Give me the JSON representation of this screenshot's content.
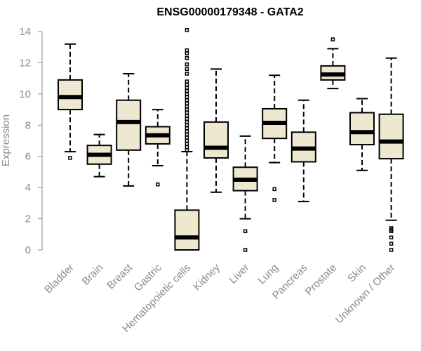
{
  "chart_data": {
    "type": "box",
    "title": "ENSG00000179348 - GATA2",
    "ylabel": "Expression",
    "xlabel": "",
    "ylim": [
      0,
      14
    ],
    "yticks": [
      0,
      2,
      4,
      6,
      8,
      10,
      12,
      14
    ],
    "colors": {
      "box_fill": "#efe8d1",
      "stroke": "#000000",
      "axis": "#8a8a8a",
      "label": "#8a8a8a"
    },
    "categories": [
      "Bladder",
      "Brain",
      "Breast",
      "Gastric",
      "Hematopoietic cells",
      "Kidney",
      "Liver",
      "Lung",
      "Pancreas",
      "Prostate",
      "Skin",
      "Unknown / Other"
    ],
    "boxes": [
      {
        "name": "Bladder",
        "whisker_low": 6.3,
        "q1": 9.0,
        "median": 9.8,
        "q3": 10.9,
        "whisker_high": 13.2,
        "outliers": [
          5.9
        ]
      },
      {
        "name": "Brain",
        "whisker_low": 4.7,
        "q1": 5.5,
        "median": 6.1,
        "q3": 6.7,
        "whisker_high": 7.4,
        "outliers": []
      },
      {
        "name": "Breast",
        "whisker_low": 4.1,
        "q1": 6.4,
        "median": 8.2,
        "q3": 9.6,
        "whisker_high": 11.3,
        "outliers": []
      },
      {
        "name": "Gastric",
        "whisker_low": 5.4,
        "q1": 6.8,
        "median": 7.35,
        "q3": 7.9,
        "whisker_high": 9.0,
        "outliers": [
          4.2
        ]
      },
      {
        "name": "Hematopoietic cells",
        "whisker_low": 0.0,
        "q1": 0.0,
        "median": 0.8,
        "q3": 2.55,
        "whisker_high": 6.3,
        "outliers": [
          6.4,
          6.6,
          6.8,
          7.0,
          7.2,
          7.4,
          7.6,
          7.8,
          8.0,
          8.2,
          8.4,
          8.6,
          8.8,
          9.0,
          9.2,
          9.4,
          9.6,
          9.8,
          10.0,
          10.2,
          10.4,
          10.6,
          10.8,
          11.3,
          11.6,
          11.9,
          12.3,
          12.6,
          12.8,
          14.1
        ]
      },
      {
        "name": "Kidney",
        "whisker_low": 3.7,
        "q1": 5.9,
        "median": 6.55,
        "q3": 8.2,
        "whisker_high": 11.6,
        "outliers": []
      },
      {
        "name": "Liver",
        "whisker_low": 2.0,
        "q1": 3.8,
        "median": 4.5,
        "q3": 5.3,
        "whisker_high": 7.3,
        "outliers": [
          1.2,
          0.0
        ]
      },
      {
        "name": "Lung",
        "whisker_low": 5.6,
        "q1": 7.15,
        "median": 8.15,
        "q3": 9.05,
        "whisker_high": 11.2,
        "outliers": [
          3.9,
          3.2
        ]
      },
      {
        "name": "Pancreas",
        "whisker_low": 3.1,
        "q1": 5.65,
        "median": 6.5,
        "q3": 7.55,
        "whisker_high": 9.6,
        "outliers": []
      },
      {
        "name": "Prostate",
        "whisker_low": 10.35,
        "q1": 10.9,
        "median": 11.25,
        "q3": 11.8,
        "whisker_high": 12.9,
        "outliers": [
          13.5
        ]
      },
      {
        "name": "Skin",
        "whisker_low": 5.1,
        "q1": 6.75,
        "median": 7.55,
        "q3": 8.8,
        "whisker_high": 9.7,
        "outliers": []
      },
      {
        "name": "Unknown / Other",
        "whisker_low": 1.9,
        "q1": 5.85,
        "median": 6.95,
        "q3": 8.7,
        "whisker_high": 12.3,
        "outliers": [
          1.4,
          1.3,
          1.2,
          0.8,
          0.4,
          0.0
        ]
      }
    ]
  }
}
